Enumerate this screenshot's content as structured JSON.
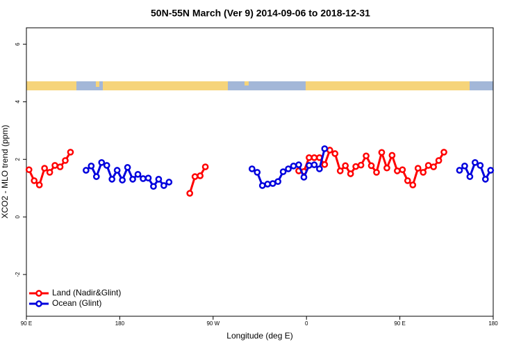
{
  "chart_data": {
    "type": "line",
    "title": "50N-55N March (Ver 9)   2014-09-06 to 2018-12-31",
    "x_label": "Longitude (deg E)",
    "y_label": "XCO2 - MLO trend (ppm)",
    "xlim": [
      90,
      540
    ],
    "xticks": [
      {
        "value": 90,
        "label": "90 E"
      },
      180,
      {
        "value": 270,
        "label": "90 W"
      },
      {
        "value": 360,
        "label": "0"
      },
      {
        "value": 450,
        "label": "90 E"
      },
      {
        "value": 540,
        "label": "180"
      }
    ],
    "ylim": [
      -3.45,
      6.57
    ],
    "yticks": [
      -2,
      0,
      2,
      4,
      6
    ],
    "legend": "bottom-left",
    "series": [
      {
        "name": "Land (Nadir&Glint)",
        "color": "#ff0000",
        "x": [
          92.5,
          97.5,
          102.5,
          107.5,
          112.5,
          117.5,
          122.5,
          127.5,
          132.5,
          null,
          247.5,
          252.5,
          257.5,
          262.5,
          null,
          352.5,
          357.5,
          362.5,
          367.5,
          372.5,
          377.5,
          382.5,
          387.5,
          392.5,
          397.5,
          402.5,
          407.5,
          412.5,
          417.5,
          422.5,
          427.5,
          432.5,
          437.5,
          442.5,
          447.5,
          452.5,
          457.5,
          462.5,
          467.5,
          472.5,
          477.5,
          482.5,
          487.5,
          492.5
        ],
        "values": [
          1.64,
          1.26,
          1.11,
          1.69,
          1.55,
          1.79,
          1.74,
          1.96,
          2.25,
          null,
          0.82,
          1.4,
          1.43,
          1.74,
          null,
          1.6,
          1.58,
          2.06,
          2.06,
          2.06,
          1.82,
          2.32,
          2.2,
          1.6,
          1.78,
          1.5,
          1.75,
          1.8,
          2.12,
          1.78,
          1.55,
          2.24,
          1.7,
          2.14,
          1.6,
          1.64,
          1.26,
          1.11,
          1.69,
          1.55,
          1.79,
          1.74,
          1.96,
          2.25
        ]
      },
      {
        "name": "Ocean (Glint)",
        "color": "#0000dd",
        "x": [
          147.5,
          152.5,
          157.5,
          162.5,
          167.5,
          172.5,
          177.5,
          182.5,
          187.5,
          192.5,
          197.5,
          202.5,
          207.5,
          212.5,
          217.5,
          222.5,
          227.5,
          null,
          307.5,
          312.5,
          317.5,
          322.5,
          327.5,
          332.5,
          337.5,
          342.5,
          347.5,
          352.5,
          357.5,
          362.5,
          367.5,
          372.5,
          377.5,
          null,
          507.5,
          512.5,
          517.5,
          522.5,
          527.5,
          532.5,
          537.5
        ],
        "values": [
          1.62,
          1.77,
          1.4,
          1.89,
          1.79,
          1.31,
          1.62,
          1.28,
          1.72,
          1.31,
          1.48,
          1.33,
          1.35,
          1.06,
          1.31,
          1.09,
          1.21,
          null,
          1.67,
          1.55,
          1.09,
          1.14,
          1.16,
          1.23,
          1.57,
          1.67,
          1.77,
          1.81,
          1.38,
          1.79,
          1.81,
          1.67,
          2.37,
          null,
          1.62,
          1.77,
          1.4,
          1.89,
          1.79,
          1.31,
          1.62
        ]
      }
    ]
  }
}
